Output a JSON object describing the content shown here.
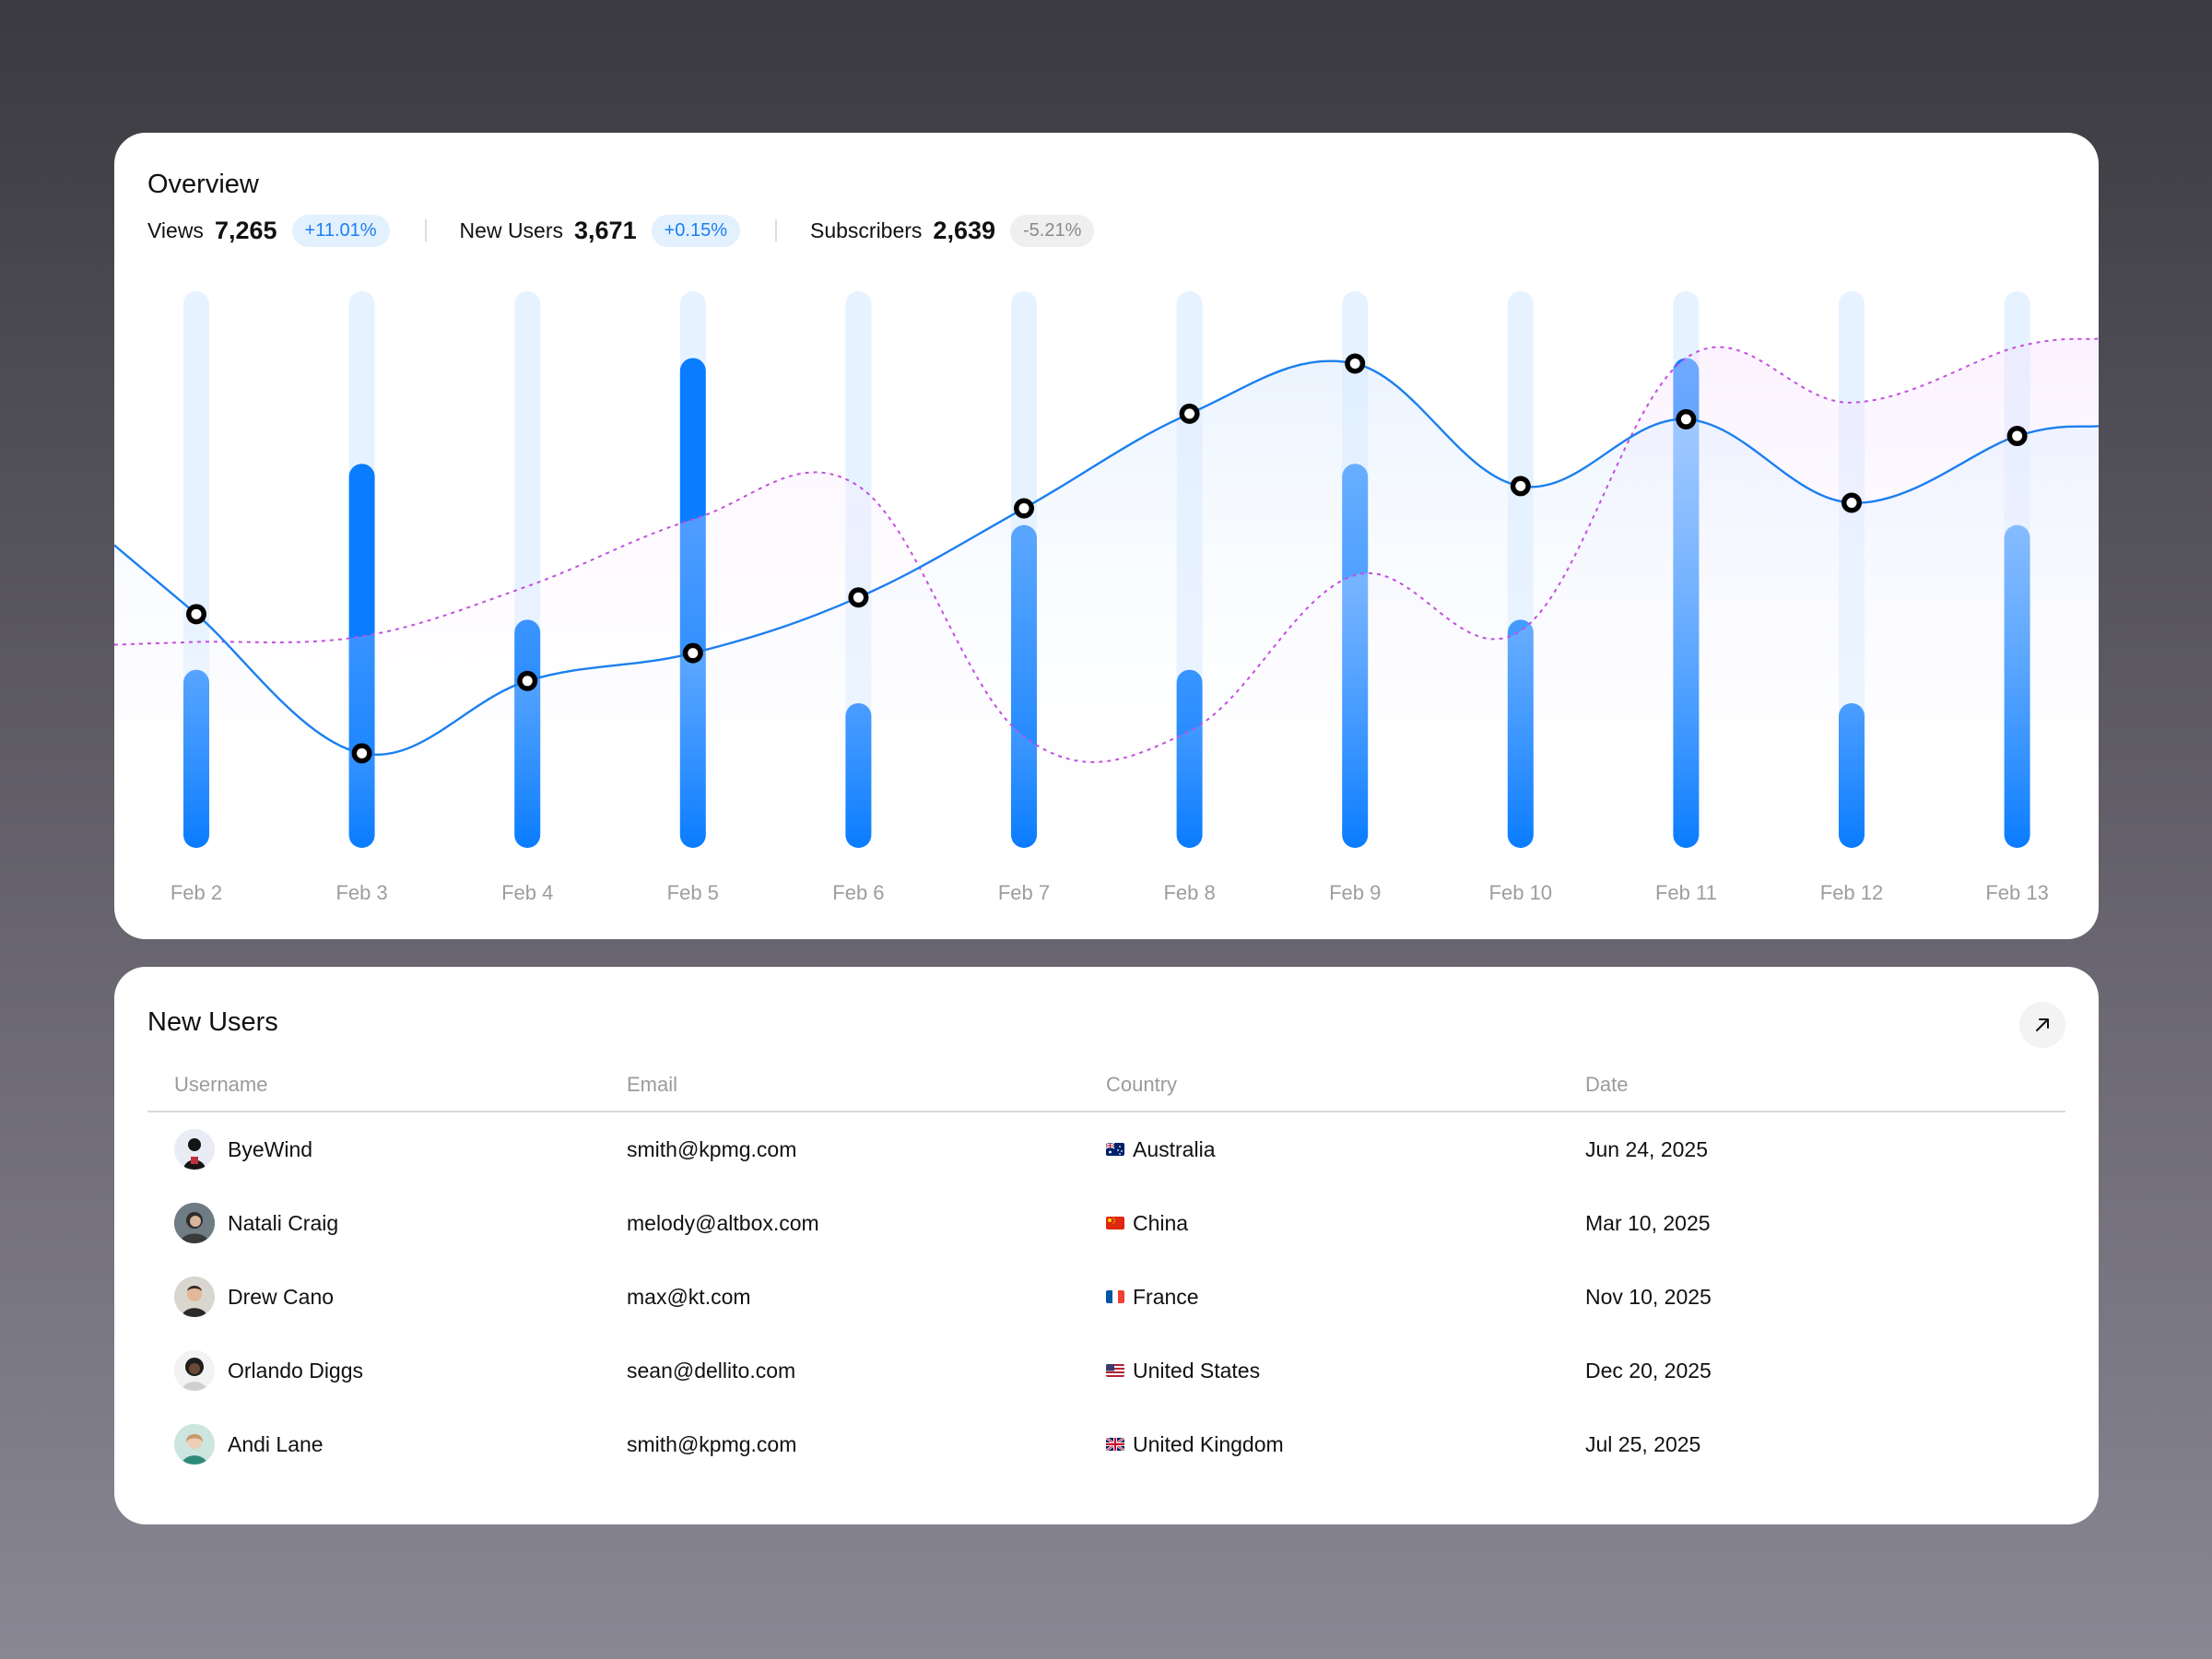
{
  "overview": {
    "title": "Overview",
    "stats": [
      {
        "label": "Views",
        "value": "7,265",
        "change": "+11.01%",
        "trend": "positive"
      },
      {
        "label": "New Users",
        "value": "3,671",
        "change": "+0.15%",
        "trend": "positive"
      },
      {
        "label": "Subscribers",
        "value": "2,639",
        "change": "-5.21%",
        "trend": "negative"
      }
    ]
  },
  "chart_data": {
    "type": "bar",
    "categories": [
      "Feb 2",
      "Feb 3",
      "Feb 4",
      "Feb 5",
      "Feb 6",
      "Feb 7",
      "Feb 8",
      "Feb 9",
      "Feb 10",
      "Feb 11",
      "Feb 12",
      "Feb 13"
    ],
    "ylim": [
      0,
      100
    ],
    "grid": false,
    "series": [
      {
        "kind": "bar",
        "values": [
          32,
          69,
          41,
          88,
          26,
          58,
          32,
          69,
          41,
          88,
          26,
          58
        ],
        "color": "#0a7cff",
        "track_color": "#e6f2ff"
      },
      {
        "kind": "line",
        "values": [
          42,
          17,
          30,
          35,
          45,
          61,
          78,
          87,
          65,
          77,
          62,
          74
        ],
        "color": "#1b7ff0"
      },
      {
        "kind": "line-dashed",
        "values": [
          37,
          38,
          47,
          59,
          65,
          20,
          21,
          49,
          39,
          88,
          80,
          90
        ],
        "color": "#c44fe0"
      }
    ]
  },
  "new_users": {
    "title": "New Users",
    "columns": [
      "Username",
      "Email",
      "Country",
      "Date"
    ],
    "rows": [
      {
        "username": "ByeWind",
        "email": "smith@kpmg.com",
        "country": "Australia",
        "flag": "au",
        "date": "Jun 24, 2025"
      },
      {
        "username": "Natali Craig",
        "email": "melody@altbox.com",
        "country": "China",
        "flag": "cn",
        "date": "Mar 10, 2025"
      },
      {
        "username": "Drew Cano",
        "email": "max@kt.com",
        "country": "France",
        "flag": "fr",
        "date": "Nov 10, 2025"
      },
      {
        "username": "Orlando Diggs",
        "email": "sean@dellito.com",
        "country": "United States",
        "flag": "us",
        "date": "Dec 20, 2025"
      },
      {
        "username": "Andi Lane",
        "email": "smith@kpmg.com",
        "country": "United Kingdom",
        "flag": "gb",
        "date": "Jul 25, 2025"
      }
    ],
    "expand_icon": "arrow-up-right-icon"
  }
}
